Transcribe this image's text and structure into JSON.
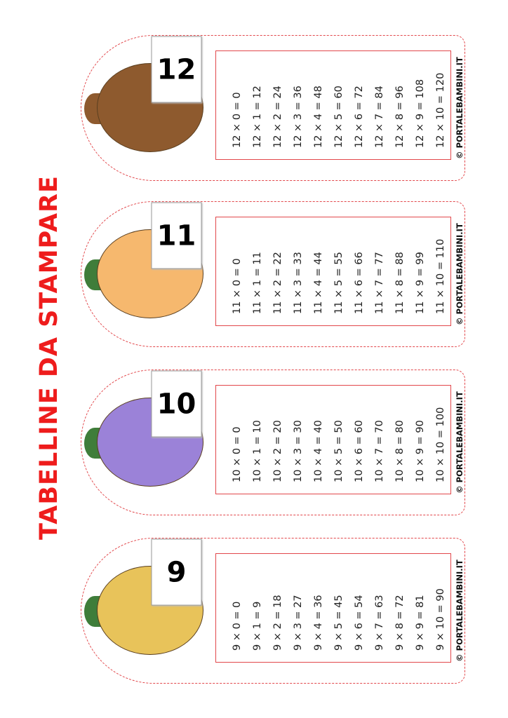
{
  "title": "TABELLINE DA STAMPARE",
  "copyright": "© PORTALEBAMBINI.IT",
  "bookmarks": [
    {
      "number": "9",
      "fruit": "pineapple",
      "color": "#e8c35a",
      "leaf": "#3f7d3a",
      "rows": [
        "9 × 0 = 0",
        "9 × 1 = 9",
        "9 × 2 = 18",
        "9 × 3 = 27",
        "9 × 4 = 36",
        "9 × 5 = 45",
        "9 × 6 = 54",
        "9 × 7 = 63",
        "9 × 8 = 72",
        "9 × 9 = 81",
        "9 × 10 = 90"
      ]
    },
    {
      "number": "10",
      "fruit": "grapes",
      "color": "#9b82d8",
      "leaf": "#3f7d3a",
      "rows": [
        "10 × 0 = 0",
        "10 × 1 = 10",
        "10 × 2 = 20",
        "10 × 3 = 30",
        "10 × 4 = 40",
        "10 × 5 = 50",
        "10 × 6 = 60",
        "10 × 7 = 70",
        "10 × 8 = 80",
        "10 × 9 = 90",
        "10 × 10 = 100"
      ]
    },
    {
      "number": "11",
      "fruit": "peach",
      "color": "#f6b86e",
      "leaf": "#3f7d3a",
      "rows": [
        "11 × 0 = 0",
        "11 × 1 = 11",
        "11 × 2 = 22",
        "11 × 3 = 33",
        "11 × 4 = 44",
        "11 × 5 = 55",
        "11 × 6 = 66",
        "11 × 7 = 77",
        "11 × 8 = 88",
        "11 × 9 = 99",
        "11 × 10 = 110"
      ]
    },
    {
      "number": "12",
      "fruit": "coconut",
      "color": "#8e5a2e",
      "leaf": "#8e5a2e",
      "rows": [
        "12 × 0 = 0",
        "12 × 1 = 12",
        "12 × 2 = 24",
        "12 × 3 = 36",
        "12 × 4 = 48",
        "12 × 5 = 60",
        "12 × 6 = 72",
        "12 × 7 = 84",
        "12 × 8 = 96",
        "12 × 9 = 108",
        "12 × 10 = 120"
      ]
    }
  ]
}
